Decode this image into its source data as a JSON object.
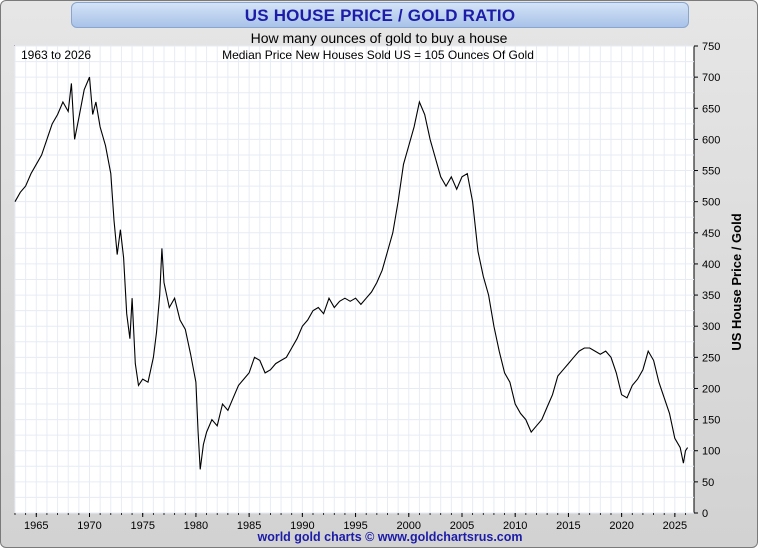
{
  "chart_data": {
    "type": "line",
    "title": "US HOUSE PRICE / GOLD RATIO",
    "subtitle": "How many ounces of gold to buy a house",
    "annotation_left": "1963 to 2026",
    "annotation_center": "Median Price New Houses Sold US = 105 Ounces Of Gold",
    "ylabel": "US House Price / Gold",
    "xlabel": "",
    "footer": "world gold charts © www.goldchartsrus.com",
    "xlim": [
      1963.0,
      2026.8
    ],
    "ylim": [
      0,
      750
    ],
    "grid": true,
    "x_ticks": [
      1965,
      1970,
      1975,
      1980,
      1985,
      1990,
      1995,
      2000,
      2005,
      2010,
      2015,
      2020,
      2025
    ],
    "y_ticks": [
      0,
      50,
      100,
      150,
      200,
      250,
      300,
      350,
      400,
      450,
      500,
      550,
      600,
      650,
      700,
      750
    ],
    "series": [
      {
        "color": "#000000",
        "points": [
          [
            1963.0,
            500
          ],
          [
            1963.5,
            515
          ],
          [
            1964.0,
            525
          ],
          [
            1964.5,
            545
          ],
          [
            1965.0,
            560
          ],
          [
            1965.5,
            575
          ],
          [
            1966.0,
            600
          ],
          [
            1966.5,
            625
          ],
          [
            1967.0,
            640
          ],
          [
            1967.5,
            660
          ],
          [
            1968.0,
            645
          ],
          [
            1968.3,
            690
          ],
          [
            1968.6,
            600
          ],
          [
            1969.0,
            635
          ],
          [
            1969.5,
            680
          ],
          [
            1970.0,
            700
          ],
          [
            1970.3,
            640
          ],
          [
            1970.6,
            660
          ],
          [
            1971.0,
            620
          ],
          [
            1971.5,
            590
          ],
          [
            1972.0,
            545
          ],
          [
            1972.3,
            470
          ],
          [
            1972.6,
            415
          ],
          [
            1972.9,
            455
          ],
          [
            1973.2,
            410
          ],
          [
            1973.5,
            320
          ],
          [
            1973.8,
            280
          ],
          [
            1974.0,
            345
          ],
          [
            1974.3,
            240
          ],
          [
            1974.6,
            205
          ],
          [
            1975.0,
            215
          ],
          [
            1975.5,
            210
          ],
          [
            1976.0,
            250
          ],
          [
            1976.3,
            290
          ],
          [
            1976.6,
            350
          ],
          [
            1976.8,
            425
          ],
          [
            1977.0,
            370
          ],
          [
            1977.5,
            330
          ],
          [
            1978.0,
            345
          ],
          [
            1978.5,
            310
          ],
          [
            1979.0,
            295
          ],
          [
            1979.5,
            255
          ],
          [
            1980.0,
            210
          ],
          [
            1980.2,
            130
          ],
          [
            1980.4,
            70
          ],
          [
            1980.7,
            110
          ],
          [
            1981.0,
            130
          ],
          [
            1981.5,
            150
          ],
          [
            1982.0,
            140
          ],
          [
            1982.5,
            175
          ],
          [
            1983.0,
            165
          ],
          [
            1983.5,
            185
          ],
          [
            1984.0,
            205
          ],
          [
            1984.5,
            215
          ],
          [
            1985.0,
            225
          ],
          [
            1985.5,
            250
          ],
          [
            1986.0,
            245
          ],
          [
            1986.5,
            225
          ],
          [
            1987.0,
            230
          ],
          [
            1987.5,
            240
          ],
          [
            1988.0,
            245
          ],
          [
            1988.5,
            250
          ],
          [
            1989.0,
            265
          ],
          [
            1989.5,
            280
          ],
          [
            1990.0,
            300
          ],
          [
            1990.5,
            310
          ],
          [
            1991.0,
            325
          ],
          [
            1991.5,
            330
          ],
          [
            1992.0,
            320
          ],
          [
            1992.5,
            345
          ],
          [
            1993.0,
            330
          ],
          [
            1993.5,
            340
          ],
          [
            1994.0,
            345
          ],
          [
            1994.5,
            340
          ],
          [
            1995.0,
            345
          ],
          [
            1995.5,
            335
          ],
          [
            1996.0,
            345
          ],
          [
            1996.5,
            355
          ],
          [
            1997.0,
            370
          ],
          [
            1997.5,
            390
          ],
          [
            1998.0,
            420
          ],
          [
            1998.5,
            450
          ],
          [
            1999.0,
            500
          ],
          [
            1999.5,
            560
          ],
          [
            2000.0,
            590
          ],
          [
            2000.5,
            620
          ],
          [
            2001.0,
            660
          ],
          [
            2001.5,
            640
          ],
          [
            2002.0,
            600
          ],
          [
            2002.5,
            570
          ],
          [
            2003.0,
            540
          ],
          [
            2003.5,
            525
          ],
          [
            2004.0,
            540
          ],
          [
            2004.5,
            520
          ],
          [
            2005.0,
            540
          ],
          [
            2005.5,
            545
          ],
          [
            2006.0,
            500
          ],
          [
            2006.5,
            420
          ],
          [
            2007.0,
            380
          ],
          [
            2007.5,
            350
          ],
          [
            2008.0,
            300
          ],
          [
            2008.5,
            260
          ],
          [
            2009.0,
            225
          ],
          [
            2009.5,
            210
          ],
          [
            2010.0,
            175
          ],
          [
            2010.5,
            160
          ],
          [
            2011.0,
            150
          ],
          [
            2011.5,
            130
          ],
          [
            2012.0,
            140
          ],
          [
            2012.5,
            150
          ],
          [
            2013.0,
            170
          ],
          [
            2013.5,
            190
          ],
          [
            2014.0,
            220
          ],
          [
            2014.5,
            230
          ],
          [
            2015.0,
            240
          ],
          [
            2015.5,
            250
          ],
          [
            2016.0,
            260
          ],
          [
            2016.5,
            265
          ],
          [
            2017.0,
            265
          ],
          [
            2017.5,
            260
          ],
          [
            2018.0,
            255
          ],
          [
            2018.5,
            260
          ],
          [
            2019.0,
            250
          ],
          [
            2019.5,
            225
          ],
          [
            2020.0,
            190
          ],
          [
            2020.5,
            185
          ],
          [
            2021.0,
            205
          ],
          [
            2021.5,
            215
          ],
          [
            2022.0,
            230
          ],
          [
            2022.5,
            260
          ],
          [
            2023.0,
            245
          ],
          [
            2023.5,
            210
          ],
          [
            2024.0,
            185
          ],
          [
            2024.5,
            160
          ],
          [
            2025.0,
            120
          ],
          [
            2025.5,
            105
          ],
          [
            2025.8,
            80
          ],
          [
            2026.0,
            100
          ],
          [
            2026.2,
            105
          ]
        ]
      }
    ]
  }
}
